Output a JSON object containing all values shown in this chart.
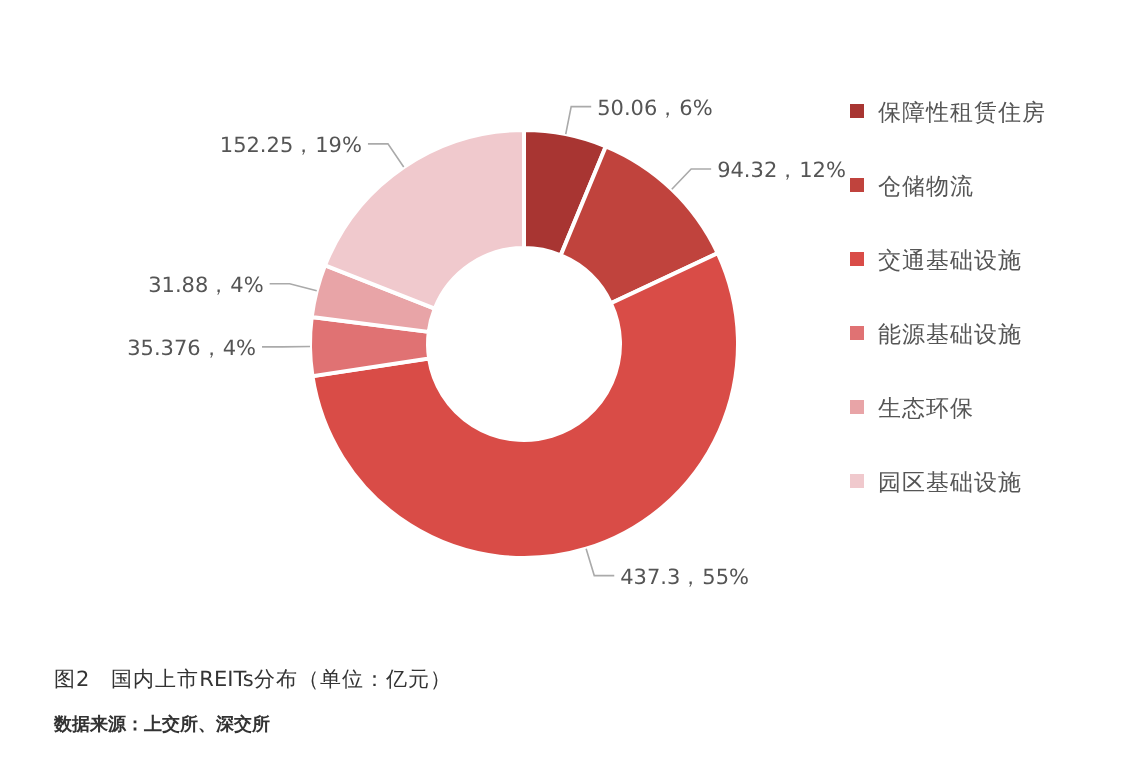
{
  "chart_data": {
    "type": "donut",
    "title": "图2　国内上市REITs分布（单位：亿元）",
    "annotations": [
      "数据来源：上交所、深交所"
    ],
    "categories": [
      "保障性租赁住房",
      "仓储物流",
      "交通基础设施",
      "能源基础设施",
      "生态环保",
      "园区基础设施"
    ],
    "values": [
      50.06,
      94.32,
      437.3,
      35.376,
      31.88,
      152.25
    ],
    "colors": [
      "#a83532",
      "#c0433d",
      "#d94c47",
      "#e07273",
      "#e8a4a7",
      "#f0c9cd"
    ],
    "value_labels": [
      "50.06，6%",
      "94.32，12%",
      "437.3，55%",
      "35.376，4%",
      "31.88，4%",
      "152.25，19%"
    ],
    "legend": "right"
  }
}
